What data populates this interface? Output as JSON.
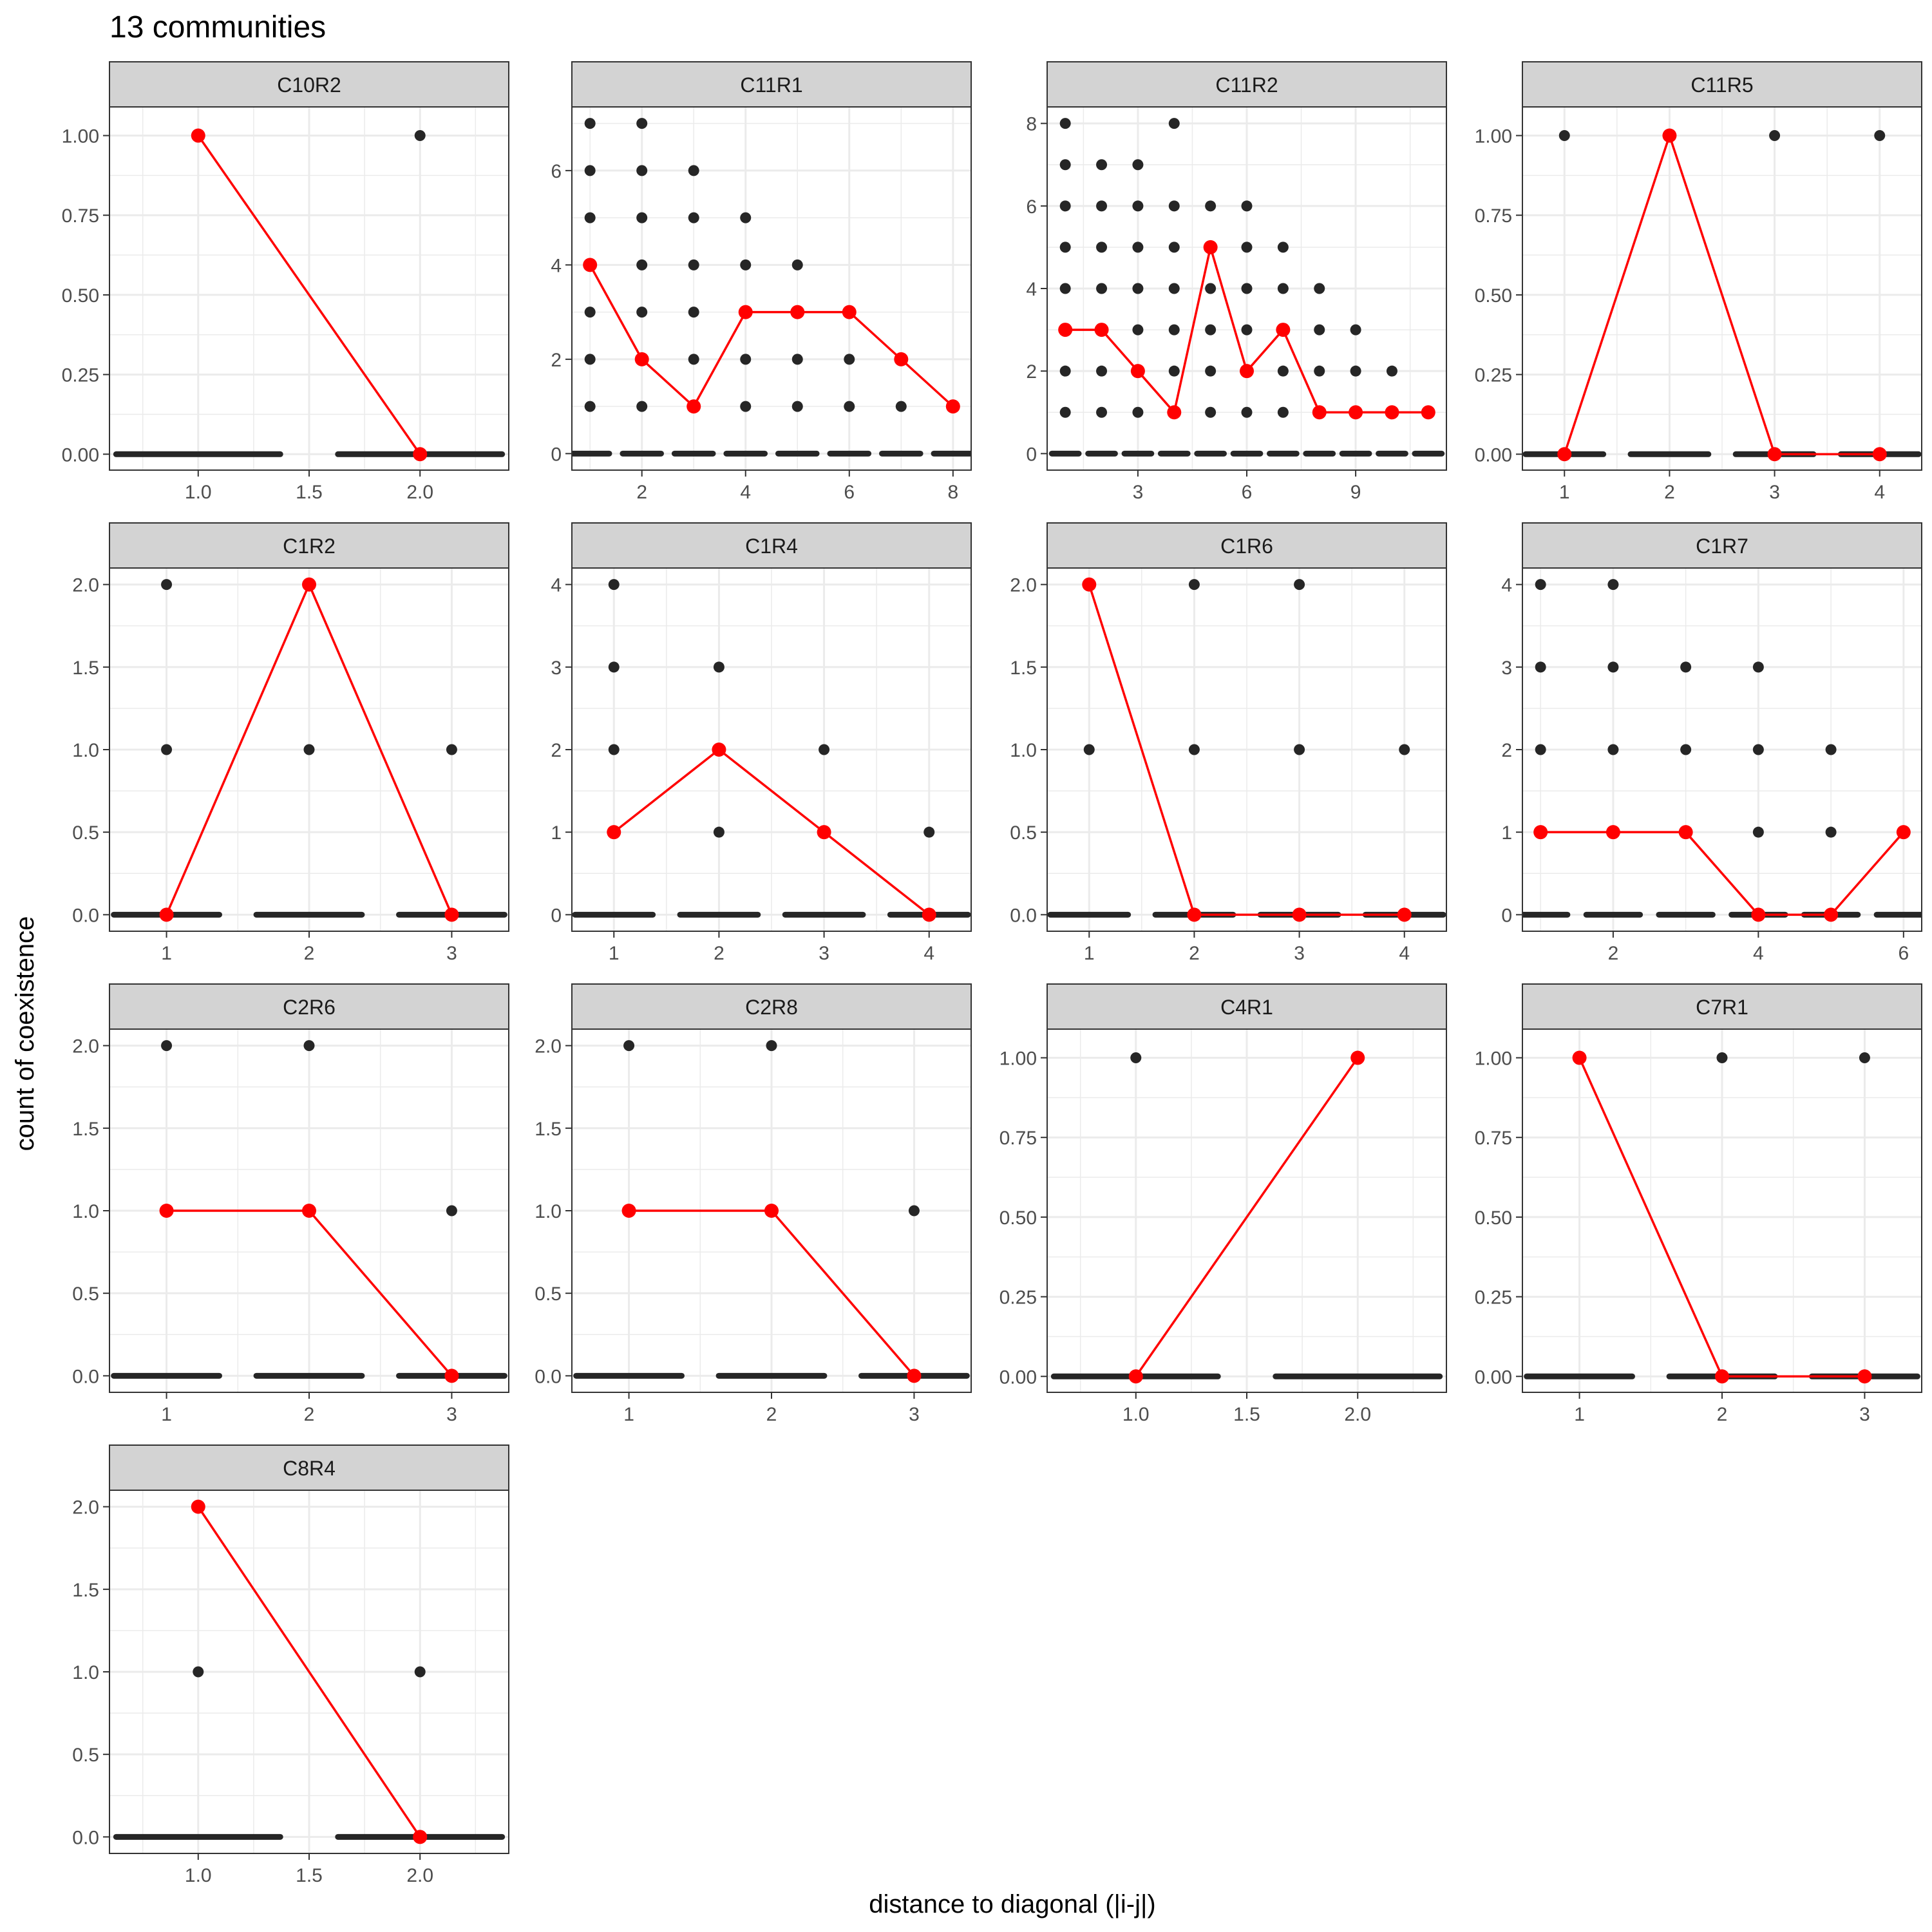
{
  "figure": {
    "title": "13 communities",
    "xlabel": "distance to diagonal (|i-j|)",
    "ylabel": "count of coexistence",
    "point_color": "#262626",
    "mean_color": "#ff0000",
    "strip_fill": "#d3d3d3",
    "grid_color": "#ebebeb"
  },
  "chart_data": [
    {
      "type": "scatter",
      "panel": "C10R2",
      "xlim": [
        0.6,
        2.4
      ],
      "ylim": [
        -0.05,
        1.09
      ],
      "x_ticks": [
        1,
        1.5,
        2
      ],
      "x_tick_labels": [
        "1.0",
        "1.5",
        "2.0"
      ],
      "y_ticks": [
        0,
        0.25,
        0.5,
        0.75,
        1
      ],
      "y_tick_labels": [
        "0.00",
        "0.25",
        "0.50",
        "0.75",
        "1.00"
      ],
      "zero_x": [
        1,
        2
      ],
      "points": [
        [
          2,
          1
        ]
      ],
      "mean_line": [
        [
          1,
          1
        ],
        [
          2,
          0
        ]
      ]
    },
    {
      "type": "scatter",
      "panel": "C11R1",
      "xlim": [
        0.65,
        8.35
      ],
      "ylim": [
        -0.35,
        7.35
      ],
      "x_ticks": [
        2,
        4,
        6,
        8
      ],
      "x_tick_labels": [
        "2",
        "4",
        "6",
        "8"
      ],
      "y_ticks": [
        0,
        2,
        4,
        6
      ],
      "y_tick_labels": [
        "0",
        "2",
        "4",
        "6"
      ],
      "zero_x": [
        1,
        2,
        3,
        4,
        5,
        6,
        7,
        8
      ],
      "points": [
        [
          1,
          1
        ],
        [
          1,
          2
        ],
        [
          1,
          3
        ],
        [
          1,
          5
        ],
        [
          1,
          6
        ],
        [
          1,
          7
        ],
        [
          2,
          1
        ],
        [
          2,
          3
        ],
        [
          2,
          4
        ],
        [
          2,
          5
        ],
        [
          2,
          6
        ],
        [
          2,
          7
        ],
        [
          3,
          2
        ],
        [
          3,
          3
        ],
        [
          3,
          4
        ],
        [
          3,
          5
        ],
        [
          3,
          6
        ],
        [
          4,
          1
        ],
        [
          4,
          2
        ],
        [
          4,
          4
        ],
        [
          4,
          5
        ],
        [
          5,
          1
        ],
        [
          5,
          2
        ],
        [
          5,
          4
        ],
        [
          6,
          1
        ],
        [
          6,
          2
        ],
        [
          7,
          1
        ]
      ],
      "mean_line": [
        [
          1,
          4
        ],
        [
          2,
          2
        ],
        [
          3,
          1
        ],
        [
          4,
          3
        ],
        [
          5,
          3
        ],
        [
          6,
          3
        ],
        [
          7,
          2
        ],
        [
          8,
          1
        ]
      ]
    },
    {
      "type": "scatter",
      "panel": "C11R2",
      "xlim": [
        0.5,
        11.5
      ],
      "ylim": [
        -0.4,
        8.4
      ],
      "x_ticks": [
        3,
        6,
        9
      ],
      "x_tick_labels": [
        "3",
        "6",
        "9"
      ],
      "y_ticks": [
        0,
        2,
        4,
        6,
        8
      ],
      "y_tick_labels": [
        "0",
        "2",
        "4",
        "6",
        "8"
      ],
      "zero_x": [
        1,
        2,
        3,
        4,
        5,
        6,
        7,
        8,
        9,
        10,
        11
      ],
      "points": [
        [
          1,
          1
        ],
        [
          1,
          2
        ],
        [
          1,
          4
        ],
        [
          1,
          5
        ],
        [
          1,
          6
        ],
        [
          1,
          7
        ],
        [
          1,
          8
        ],
        [
          2,
          1
        ],
        [
          2,
          2
        ],
        [
          2,
          4
        ],
        [
          2,
          5
        ],
        [
          2,
          6
        ],
        [
          2,
          7
        ],
        [
          3,
          1
        ],
        [
          3,
          3
        ],
        [
          3,
          4
        ],
        [
          3,
          5
        ],
        [
          3,
          6
        ],
        [
          3,
          7
        ],
        [
          4,
          2
        ],
        [
          4,
          3
        ],
        [
          4,
          4
        ],
        [
          4,
          5
        ],
        [
          4,
          6
        ],
        [
          4,
          8
        ],
        [
          5,
          1
        ],
        [
          5,
          2
        ],
        [
          5,
          3
        ],
        [
          5,
          4
        ],
        [
          5,
          6
        ],
        [
          6,
          1
        ],
        [
          6,
          3
        ],
        [
          6,
          4
        ],
        [
          6,
          5
        ],
        [
          6,
          6
        ],
        [
          7,
          1
        ],
        [
          7,
          2
        ],
        [
          7,
          4
        ],
        [
          7,
          5
        ],
        [
          8,
          2
        ],
        [
          8,
          3
        ],
        [
          8,
          4
        ],
        [
          9,
          2
        ],
        [
          9,
          3
        ],
        [
          10,
          2
        ]
      ],
      "mean_line": [
        [
          1,
          3
        ],
        [
          2,
          3
        ],
        [
          3,
          2
        ],
        [
          4,
          1
        ],
        [
          5,
          5
        ],
        [
          6,
          2
        ],
        [
          7,
          3
        ],
        [
          8,
          1
        ],
        [
          9,
          1
        ],
        [
          10,
          1
        ],
        [
          11,
          1
        ]
      ]
    },
    {
      "type": "scatter",
      "panel": "C11R5",
      "xlim": [
        0.6,
        4.4
      ],
      "ylim": [
        -0.05,
        1.09
      ],
      "x_ticks": [
        1,
        2,
        3,
        4
      ],
      "x_tick_labels": [
        "1",
        "2",
        "3",
        "4"
      ],
      "y_ticks": [
        0,
        0.25,
        0.5,
        0.75,
        1
      ],
      "y_tick_labels": [
        "0.00",
        "0.25",
        "0.50",
        "0.75",
        "1.00"
      ],
      "zero_x": [
        1,
        2,
        3,
        4
      ],
      "points": [
        [
          1,
          1
        ],
        [
          3,
          1
        ],
        [
          4,
          1
        ]
      ],
      "mean_line": [
        [
          1,
          0
        ],
        [
          2,
          1
        ],
        [
          3,
          0
        ],
        [
          4,
          0
        ]
      ]
    },
    {
      "type": "scatter",
      "panel": "C1R2",
      "xlim": [
        0.6,
        3.4
      ],
      "ylim": [
        -0.1,
        2.1
      ],
      "x_ticks": [
        1,
        2,
        3
      ],
      "x_tick_labels": [
        "1",
        "2",
        "3"
      ],
      "y_ticks": [
        0,
        0.5,
        1,
        1.5,
        2
      ],
      "y_tick_labels": [
        "0.0",
        "0.5",
        "1.0",
        "1.5",
        "2.0"
      ],
      "zero_x": [
        1,
        2,
        3
      ],
      "points": [
        [
          1,
          1
        ],
        [
          1,
          2
        ],
        [
          2,
          1
        ],
        [
          3,
          1
        ]
      ],
      "mean_line": [
        [
          1,
          0
        ],
        [
          2,
          2
        ],
        [
          3,
          0
        ]
      ]
    },
    {
      "type": "scatter",
      "panel": "C1R4",
      "xlim": [
        0.6,
        4.4
      ],
      "ylim": [
        -0.2,
        4.2
      ],
      "x_ticks": [
        1,
        2,
        3,
        4
      ],
      "x_tick_labels": [
        "1",
        "2",
        "3",
        "4"
      ],
      "y_ticks": [
        0,
        1,
        2,
        3,
        4
      ],
      "y_tick_labels": [
        "0",
        "1",
        "2",
        "3",
        "4"
      ],
      "zero_x": [
        1,
        2,
        3,
        4
      ],
      "points": [
        [
          1,
          2
        ],
        [
          1,
          3
        ],
        [
          1,
          4
        ],
        [
          2,
          1
        ],
        [
          2,
          3
        ],
        [
          3,
          2
        ],
        [
          4,
          1
        ]
      ],
      "mean_line": [
        [
          1,
          1
        ],
        [
          2,
          2
        ],
        [
          3,
          1
        ],
        [
          4,
          0
        ]
      ]
    },
    {
      "type": "scatter",
      "panel": "C1R6",
      "xlim": [
        0.6,
        4.4
      ],
      "ylim": [
        -0.1,
        2.1
      ],
      "x_ticks": [
        1,
        2,
        3,
        4
      ],
      "x_tick_labels": [
        "1",
        "2",
        "3",
        "4"
      ],
      "y_ticks": [
        0,
        0.5,
        1,
        1.5,
        2
      ],
      "y_tick_labels": [
        "0.0",
        "0.5",
        "1.0",
        "1.5",
        "2.0"
      ],
      "zero_x": [
        1,
        2,
        3,
        4
      ],
      "points": [
        [
          1,
          1
        ],
        [
          2,
          1
        ],
        [
          2,
          2
        ],
        [
          3,
          1
        ],
        [
          3,
          2
        ],
        [
          4,
          1
        ]
      ],
      "mean_line": [
        [
          1,
          2
        ],
        [
          2,
          0
        ],
        [
          3,
          0
        ],
        [
          4,
          0
        ]
      ]
    },
    {
      "type": "scatter",
      "panel": "C1R7",
      "xlim": [
        0.75,
        6.25
      ],
      "ylim": [
        -0.2,
        4.2
      ],
      "x_ticks": [
        2,
        4,
        6
      ],
      "x_tick_labels": [
        "2",
        "4",
        "6"
      ],
      "y_ticks": [
        0,
        1,
        2,
        3,
        4
      ],
      "y_tick_labels": [
        "0",
        "1",
        "2",
        "3",
        "4"
      ],
      "zero_x": [
        1,
        2,
        3,
        4,
        5,
        6
      ],
      "points": [
        [
          1,
          2
        ],
        [
          1,
          3
        ],
        [
          1,
          4
        ],
        [
          2,
          2
        ],
        [
          2,
          3
        ],
        [
          2,
          4
        ],
        [
          3,
          2
        ],
        [
          3,
          3
        ],
        [
          4,
          1
        ],
        [
          4,
          2
        ],
        [
          4,
          3
        ],
        [
          5,
          1
        ],
        [
          5,
          2
        ]
      ],
      "mean_line": [
        [
          1,
          1
        ],
        [
          2,
          1
        ],
        [
          3,
          1
        ],
        [
          4,
          0
        ],
        [
          5,
          0
        ],
        [
          6,
          1
        ]
      ]
    },
    {
      "type": "scatter",
      "panel": "C2R6",
      "xlim": [
        0.6,
        3.4
      ],
      "ylim": [
        -0.1,
        2.1
      ],
      "x_ticks": [
        1,
        2,
        3
      ],
      "x_tick_labels": [
        "1",
        "2",
        "3"
      ],
      "y_ticks": [
        0,
        0.5,
        1,
        1.5,
        2
      ],
      "y_tick_labels": [
        "0.0",
        "0.5",
        "1.0",
        "1.5",
        "2.0"
      ],
      "zero_x": [
        1,
        2,
        3
      ],
      "points": [
        [
          1,
          2
        ],
        [
          2,
          2
        ],
        [
          3,
          1
        ]
      ],
      "mean_line": [
        [
          1,
          1
        ],
        [
          2,
          1
        ],
        [
          3,
          0
        ]
      ]
    },
    {
      "type": "scatter",
      "panel": "C2R8",
      "xlim": [
        0.6,
        3.4
      ],
      "ylim": [
        -0.1,
        2.1
      ],
      "x_ticks": [
        1,
        2,
        3
      ],
      "x_tick_labels": [
        "1",
        "2",
        "3"
      ],
      "y_ticks": [
        0,
        0.5,
        1,
        1.5,
        2
      ],
      "y_tick_labels": [
        "0.0",
        "0.5",
        "1.0",
        "1.5",
        "2.0"
      ],
      "zero_x": [
        1,
        2,
        3
      ],
      "points": [
        [
          1,
          2
        ],
        [
          2,
          2
        ],
        [
          3,
          1
        ]
      ],
      "mean_line": [
        [
          1,
          1
        ],
        [
          2,
          1
        ],
        [
          3,
          0
        ]
      ]
    },
    {
      "type": "scatter",
      "panel": "C4R1",
      "xlim": [
        0.6,
        2.4
      ],
      "ylim": [
        -0.05,
        1.09
      ],
      "x_ticks": [
        1,
        1.5,
        2
      ],
      "x_tick_labels": [
        "1.0",
        "1.5",
        "2.0"
      ],
      "y_ticks": [
        0,
        0.25,
        0.5,
        0.75,
        1
      ],
      "y_tick_labels": [
        "0.00",
        "0.25",
        "0.50",
        "0.75",
        "1.00"
      ],
      "zero_x": [
        1,
        2
      ],
      "points": [
        [
          1,
          1
        ]
      ],
      "mean_line": [
        [
          1,
          0
        ],
        [
          2,
          1
        ]
      ]
    },
    {
      "type": "scatter",
      "panel": "C7R1",
      "xlim": [
        0.6,
        3.4
      ],
      "ylim": [
        -0.05,
        1.09
      ],
      "x_ticks": [
        1,
        2,
        3
      ],
      "x_tick_labels": [
        "1",
        "2",
        "3"
      ],
      "y_ticks": [
        0,
        0.25,
        0.5,
        0.75,
        1
      ],
      "y_tick_labels": [
        "0.00",
        "0.25",
        "0.50",
        "0.75",
        "1.00"
      ],
      "zero_x": [
        1,
        2,
        3
      ],
      "points": [
        [
          2,
          1
        ],
        [
          3,
          1
        ]
      ],
      "mean_line": [
        [
          1,
          1
        ],
        [
          2,
          0
        ],
        [
          3,
          0
        ]
      ]
    },
    {
      "type": "scatter",
      "panel": "C8R4",
      "xlim": [
        0.6,
        2.4
      ],
      "ylim": [
        -0.1,
        2.1
      ],
      "x_ticks": [
        1,
        1.5,
        2
      ],
      "x_tick_labels": [
        "1.0",
        "1.5",
        "2.0"
      ],
      "y_ticks": [
        0,
        0.5,
        1,
        1.5,
        2
      ],
      "y_tick_labels": [
        "0.0",
        "0.5",
        "1.0",
        "1.5",
        "2.0"
      ],
      "zero_x": [
        1,
        2
      ],
      "points": [
        [
          1,
          1
        ],
        [
          2,
          1
        ]
      ],
      "mean_line": [
        [
          1,
          2
        ],
        [
          2,
          0
        ]
      ]
    }
  ]
}
